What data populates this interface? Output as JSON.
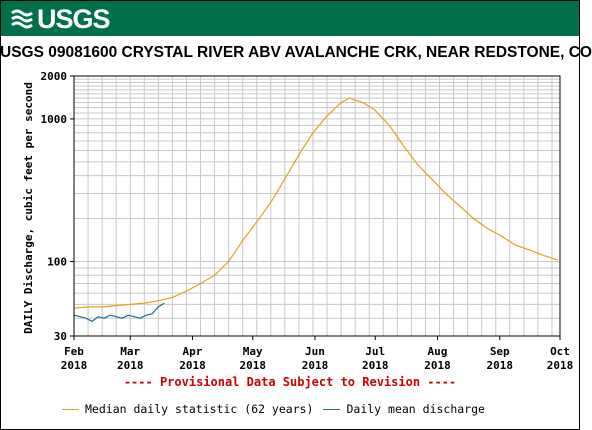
{
  "header": {
    "agency": "USGS"
  },
  "chart_data": {
    "type": "line",
    "title": "USGS 09081600 CRYSTAL RIVER ABV AVALANCHE CRK, NEAR REDSTONE, CO",
    "ylabel": "DAILY Discharge, cubic feet per second",
    "xlabel": "",
    "yscale": "log",
    "ylim": [
      30,
      2000
    ],
    "xlim": [
      "2018-02-01",
      "2018-10-01"
    ],
    "grid": true,
    "legend_position": "bottom",
    "y_ticks": [
      30,
      100,
      1000,
      2000
    ],
    "x_ticks": [
      {
        "date": "2018-02-01",
        "month": "Feb",
        "year": "2018"
      },
      {
        "date": "2018-03-01",
        "month": "Mar",
        "year": "2018"
      },
      {
        "date": "2018-04-01",
        "month": "Apr",
        "year": "2018"
      },
      {
        "date": "2018-05-01",
        "month": "May",
        "year": "2018"
      },
      {
        "date": "2018-06-01",
        "month": "Jun",
        "year": "2018"
      },
      {
        "date": "2018-07-01",
        "month": "Jul",
        "year": "2018"
      },
      {
        "date": "2018-08-01",
        "month": "Aug",
        "year": "2018"
      },
      {
        "date": "2018-09-01",
        "month": "Sep",
        "year": "2018"
      },
      {
        "date": "2018-10-01",
        "month": "Oct",
        "year": "2018"
      }
    ],
    "series": [
      {
        "name": "Median daily statistic (62 years)",
        "color": "#e6a117",
        "points": [
          [
            "2018-02-01",
            47
          ],
          [
            "2018-02-08",
            48
          ],
          [
            "2018-02-15",
            48
          ],
          [
            "2018-02-22",
            49
          ],
          [
            "2018-03-01",
            50
          ],
          [
            "2018-03-08",
            51
          ],
          [
            "2018-03-15",
            53
          ],
          [
            "2018-03-22",
            56
          ],
          [
            "2018-03-29",
            62
          ],
          [
            "2018-04-05",
            70
          ],
          [
            "2018-04-12",
            80
          ],
          [
            "2018-04-19",
            100
          ],
          [
            "2018-04-26",
            140
          ],
          [
            "2018-05-03",
            190
          ],
          [
            "2018-05-10",
            260
          ],
          [
            "2018-05-17",
            380
          ],
          [
            "2018-05-24",
            560
          ],
          [
            "2018-05-31",
            800
          ],
          [
            "2018-06-07",
            1050
          ],
          [
            "2018-06-14",
            1300
          ],
          [
            "2018-06-18",
            1400
          ],
          [
            "2018-06-25",
            1300
          ],
          [
            "2018-07-01",
            1150
          ],
          [
            "2018-07-08",
            900
          ],
          [
            "2018-07-15",
            650
          ],
          [
            "2018-07-22",
            480
          ],
          [
            "2018-07-29",
            380
          ],
          [
            "2018-08-05",
            300
          ],
          [
            "2018-08-12",
            245
          ],
          [
            "2018-08-19",
            200
          ],
          [
            "2018-08-26",
            170
          ],
          [
            "2018-09-02",
            150
          ],
          [
            "2018-09-09",
            130
          ],
          [
            "2018-09-16",
            120
          ],
          [
            "2018-09-23",
            110
          ],
          [
            "2018-09-30",
            102
          ]
        ]
      },
      {
        "name": "Daily mean discharge",
        "color": "#1c6e96",
        "points": [
          [
            "2018-02-01",
            42
          ],
          [
            "2018-02-04",
            41
          ],
          [
            "2018-02-07",
            40
          ],
          [
            "2018-02-10",
            38
          ],
          [
            "2018-02-13",
            41
          ],
          [
            "2018-02-16",
            40
          ],
          [
            "2018-02-19",
            42
          ],
          [
            "2018-02-22",
            41
          ],
          [
            "2018-02-25",
            40
          ],
          [
            "2018-02-28",
            42
          ],
          [
            "2018-03-03",
            41
          ],
          [
            "2018-03-06",
            40
          ],
          [
            "2018-03-09",
            42
          ],
          [
            "2018-03-12",
            43
          ],
          [
            "2018-03-15",
            48
          ],
          [
            "2018-03-18",
            51
          ]
        ]
      }
    ]
  },
  "note": "---- Provisional Data Subject to Revision ----"
}
